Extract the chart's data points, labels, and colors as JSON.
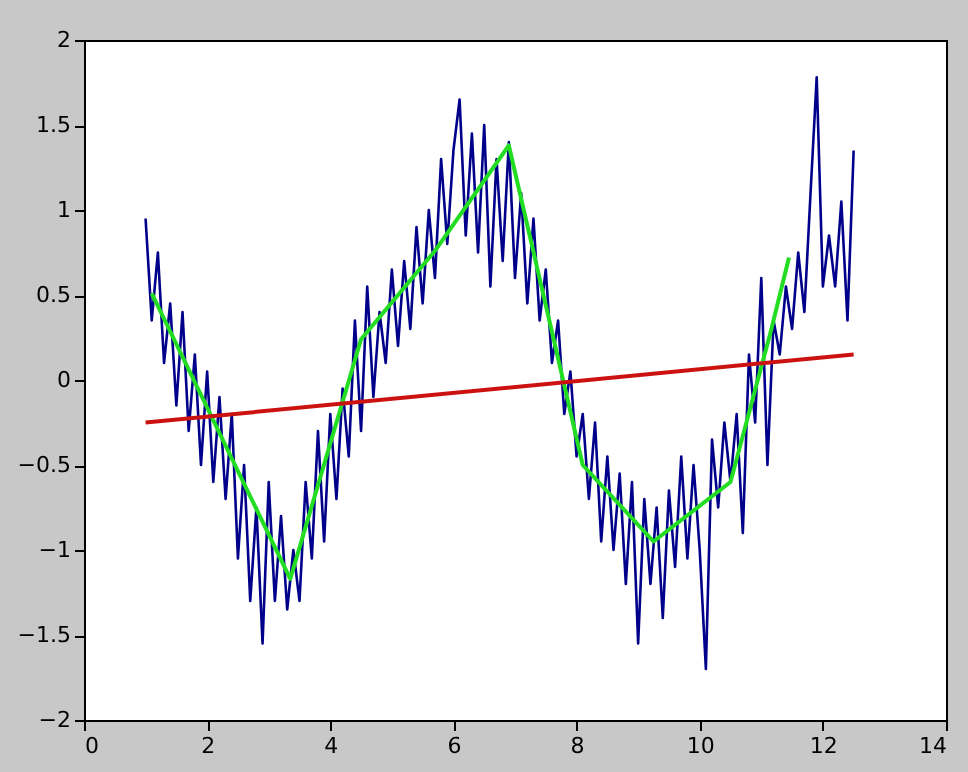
{
  "chart_data": {
    "type": "line",
    "xlim": [
      0,
      14
    ],
    "ylim": [
      -2,
      2
    ],
    "xticks": [
      0,
      2,
      4,
      6,
      8,
      10,
      12,
      14
    ],
    "yticks": [
      -2,
      -1.5,
      -1,
      -0.5,
      0,
      0.5,
      1,
      1.5,
      2
    ],
    "grid": false,
    "marker": "none",
    "line_style": "solid",
    "series": [
      {
        "color": "#00008b",
        "x": [
          1.0,
          1.1,
          1.2,
          1.3,
          1.4,
          1.5,
          1.6,
          1.7,
          1.8,
          1.9,
          2.0,
          2.1,
          2.2,
          2.3,
          2.4,
          2.5,
          2.6,
          2.7,
          2.8,
          2.9,
          3.0,
          3.1,
          3.2,
          3.3,
          3.4,
          3.5,
          3.6,
          3.7,
          3.8,
          3.9,
          4.0,
          4.1,
          4.2,
          4.3,
          4.4,
          4.5,
          4.6,
          4.7,
          4.8,
          4.9,
          5.0,
          5.1,
          5.2,
          5.3,
          5.4,
          5.5,
          5.6,
          5.7,
          5.8,
          5.9,
          6.0,
          6.1,
          6.2,
          6.3,
          6.4,
          6.5,
          6.6,
          6.7,
          6.8,
          6.9,
          7.0,
          7.1,
          7.2,
          7.3,
          7.4,
          7.5,
          7.6,
          7.7,
          7.8,
          7.9,
          8.0,
          8.1,
          8.2,
          8.3,
          8.4,
          8.5,
          8.6,
          8.7,
          8.8,
          8.9,
          9.0,
          9.1,
          9.2,
          9.3,
          9.4,
          9.5,
          9.6,
          9.7,
          9.8,
          9.9,
          10.0,
          10.1,
          10.2,
          10.3,
          10.4,
          10.5,
          10.6,
          10.7,
          10.8,
          10.9,
          11.0,
          11.1,
          11.2,
          11.3,
          11.4,
          11.5,
          11.6,
          11.7,
          11.8,
          11.9,
          12.0,
          12.1,
          12.2,
          12.3,
          12.4,
          12.5
        ],
        "values": [
          0.95,
          0.35,
          0.75,
          0.1,
          0.45,
          -0.15,
          0.4,
          -0.3,
          0.15,
          -0.5,
          0.05,
          -0.6,
          -0.1,
          -0.7,
          -0.2,
          -1.05,
          -0.5,
          -1.3,
          -0.75,
          -1.55,
          -0.6,
          -1.3,
          -0.8,
          -1.35,
          -1.0,
          -1.3,
          -0.6,
          -1.05,
          -0.3,
          -0.95,
          -0.2,
          -0.7,
          -0.05,
          -0.45,
          0.35,
          -0.3,
          0.55,
          -0.1,
          0.4,
          0.1,
          0.65,
          0.2,
          0.7,
          0.3,
          0.9,
          0.45,
          1.0,
          0.6,
          1.3,
          0.8,
          1.35,
          1.65,
          0.85,
          1.45,
          0.75,
          1.5,
          0.55,
          1.3,
          0.7,
          1.4,
          0.6,
          1.1,
          0.45,
          0.95,
          0.35,
          0.65,
          0.1,
          0.35,
          -0.2,
          0.05,
          -0.45,
          -0.2,
          -0.7,
          -0.25,
          -0.95,
          -0.45,
          -1.0,
          -0.55,
          -1.2,
          -0.6,
          -1.55,
          -0.7,
          -1.2,
          -0.75,
          -1.4,
          -0.65,
          -1.1,
          -0.45,
          -1.05,
          -0.5,
          -1.0,
          -1.7,
          -0.35,
          -0.75,
          -0.25,
          -0.6,
          -0.2,
          -0.9,
          0.15,
          -0.25,
          0.6,
          -0.5,
          0.35,
          0.15,
          0.55,
          0.3,
          0.75,
          0.4,
          1.1,
          1.78,
          0.55,
          0.85,
          0.55,
          1.05,
          0.35,
          1.35
        ]
      },
      {
        "color": "#22dd22",
        "x": [
          1.1,
          3.35,
          4.5,
          5.7,
          6.9,
          8.1,
          9.25,
          10.5,
          11.15,
          11.45
        ],
        "values": [
          0.51,
          -1.17,
          0.24,
          0.76,
          1.38,
          -0.5,
          -0.95,
          -0.6,
          0.28,
          0.72
        ]
      },
      {
        "color": "#cc1111",
        "x": [
          1.0,
          12.5
        ],
        "values": [
          -0.25,
          0.15
        ]
      }
    ]
  }
}
